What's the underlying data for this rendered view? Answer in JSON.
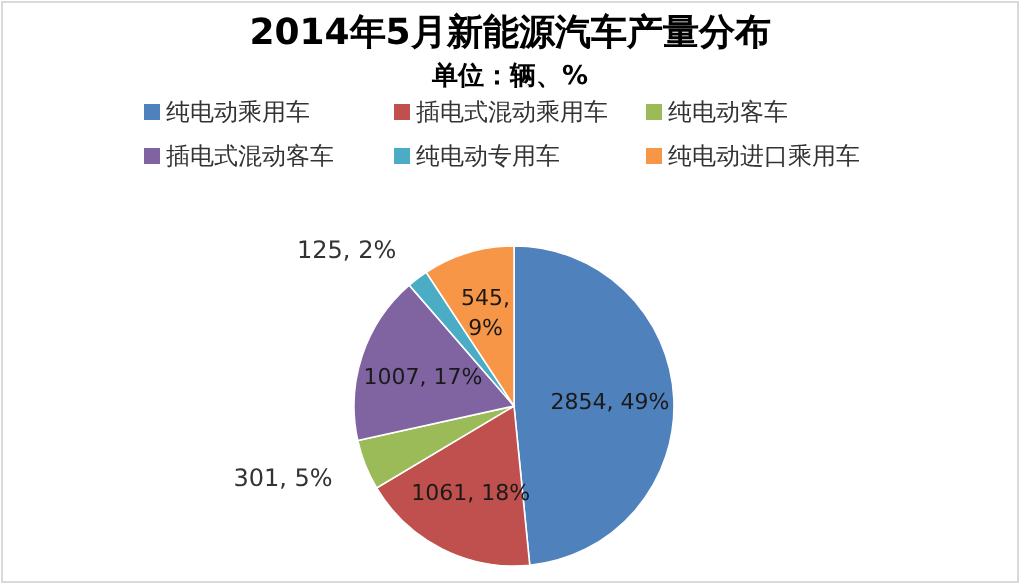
{
  "chart_data": {
    "type": "pie",
    "title": "2014年5月新能源汽车产量分布",
    "subtitle": "单位：辆、%",
    "categories": [
      "纯电动乘用车",
      "插电式混动乘用车",
      "纯电动客车",
      "插电式混动客车",
      "纯电动专用车",
      "纯电动进口乘用车"
    ],
    "values": [
      2854,
      1061,
      301,
      1007,
      125,
      545
    ],
    "colors": [
      "#4f81bd",
      "#c0504d",
      "#9bbb59",
      "#8064a2",
      "#4bacc6",
      "#f79646"
    ],
    "value_labels": [
      "2854, 49%",
      "1061, 18%",
      "301, 5%",
      "1007, 17%",
      "125, 2%",
      "545, 9%"
    ],
    "legend": "top"
  }
}
